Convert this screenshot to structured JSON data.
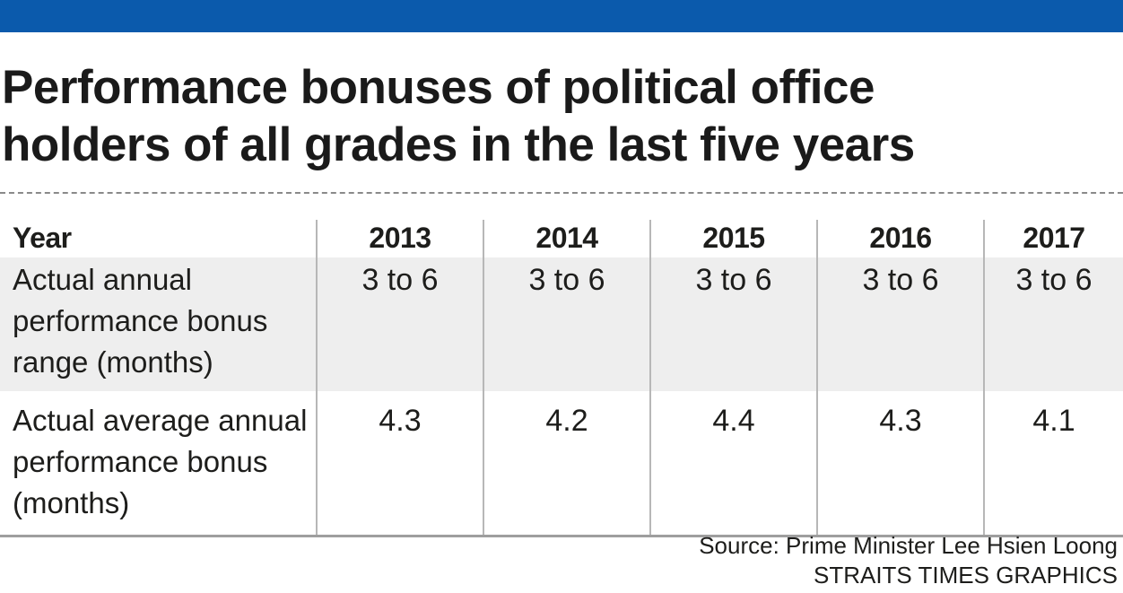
{
  "colors": {
    "top_bar": "#0b5aac",
    "shaded_row": "#eeeeee",
    "rule": "#8a8a8a"
  },
  "title": {
    "line1": "Performance bonuses of political office",
    "line2": "holders of all grades in the last five years"
  },
  "table": {
    "header_label": "Year",
    "years": [
      "2013",
      "2014",
      "2015",
      "2016",
      "2017"
    ],
    "rows": [
      {
        "label": "Actual annual performance bonus range (months)",
        "values": [
          "3 to 6",
          "3 to 6",
          "3 to 6",
          "3 to 6",
          "3 to 6"
        ]
      },
      {
        "label": "Actual average annual performance bonus (months)",
        "values": [
          "4.3",
          "4.2",
          "4.4",
          "4.3",
          "4.1"
        ]
      }
    ]
  },
  "footer": {
    "source": "Source: Prime Minister Lee Hsien Loong",
    "credit": "STRAITS TIMES GRAPHICS"
  }
}
